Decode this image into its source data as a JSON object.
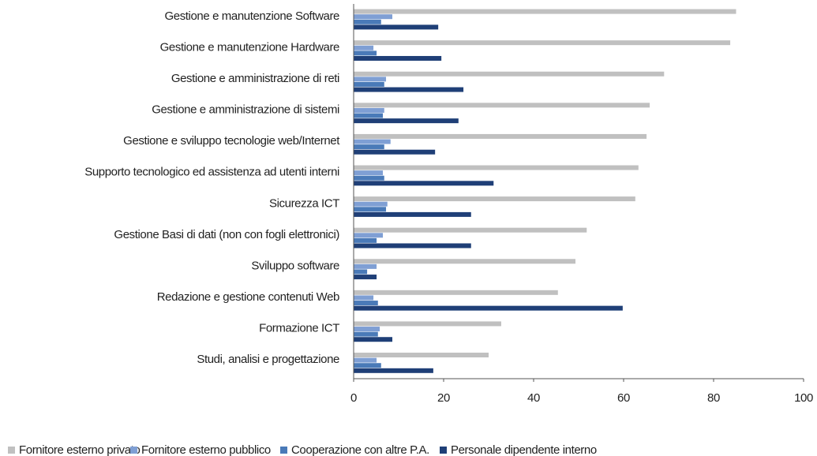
{
  "chart_data": {
    "type": "hbar",
    "categories": [
      "Gestione  e manutenzione Software",
      "Gestione e manutenzione Hardware",
      "Gestione e amministrazione di reti",
      "Gestione e amministrazione di sistemi",
      "Gestione e sviluppo tecnologie web/Internet",
      "Supporto tecnologico ed assistenza ad utenti interni",
      "Sicurezza ICT",
      "Gestione Basi di dati (non con fogli elettronici)",
      "Sviluppo software",
      "Redazione e gestione contenuti Web",
      "Formazione ICT",
      "Studi, analisi e progettazione"
    ],
    "series": [
      {
        "name": "Fornitore esterno privato",
        "color": "#c0c0c0",
        "values": [
          85,
          83.7,
          69,
          65.8,
          65.1,
          63.3,
          62.6,
          51.8,
          49.3,
          45.4,
          32.8,
          30
        ]
      },
      {
        "name": "Fornitore esterno pubblico",
        "color": "#7f9fd4",
        "values": [
          8.6,
          4.4,
          7.2,
          6.8,
          8.2,
          6.5,
          7.5,
          6.5,
          5.1,
          4.4,
          5.8,
          5.1
        ]
      },
      {
        "name": "Cooperazione con altre P.A.",
        "color": "#4a7ab8",
        "values": [
          6.1,
          5.1,
          6.8,
          6.5,
          6.8,
          6.8,
          7.2,
          5.1,
          3,
          5.4,
          5.4,
          6.1
        ]
      },
      {
        "name": "Personale dipendente interno",
        "color": "#1f3f77",
        "values": [
          18.8,
          19.5,
          24.4,
          23.3,
          18.1,
          31.1,
          26.1,
          26.1,
          5.1,
          59.8,
          8.6,
          17.7
        ]
      }
    ],
    "xlim": [
      0,
      100
    ],
    "xticks": [
      0,
      20,
      40,
      60,
      80,
      100
    ],
    "legend": "bottom"
  }
}
